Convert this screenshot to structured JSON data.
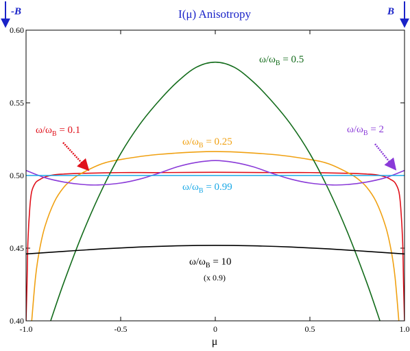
{
  "chart_data": {
    "type": "line",
    "title": "I(μ) Anisotropy",
    "xlabel": "μ",
    "ylabel": "",
    "xlim": [
      -1.0,
      1.0
    ],
    "ylim": [
      0.4,
      0.6
    ],
    "xticks": [
      -1.0,
      -0.5,
      0.0,
      0.5,
      1.0
    ],
    "xtick_labels": [
      "-1.0",
      "-0.5",
      "0",
      "0.5",
      "1.0"
    ],
    "yticks": [
      0.4,
      0.45,
      0.5,
      0.55,
      0.6
    ],
    "ytick_labels": [
      "0.40",
      "0.45",
      "0.50",
      "0.55",
      "0.60"
    ],
    "grid": false,
    "field_markers": [
      {
        "label": "-B",
        "side": "left",
        "color": "#1a23c8"
      },
      {
        "label": "B",
        "side": "right",
        "color": "#1a23c8"
      }
    ],
    "series": [
      {
        "name": "ω/ωB = 0.1",
        "label_main": "ω/ω",
        "label_sub": "B",
        "label_value": " = 0.1",
        "color": "#e0101a",
        "x": [
          -1.0,
          -0.995,
          -0.99,
          -0.98,
          -0.97,
          -0.95,
          -0.93,
          -0.9,
          -0.85,
          -0.8,
          -0.7,
          -0.5,
          -0.3,
          0.0,
          0.3,
          0.5,
          0.7,
          0.8,
          0.85,
          0.9,
          0.93,
          0.95,
          0.97,
          0.98,
          0.99,
          0.995,
          1.0
        ],
        "y": [
          0.4,
          0.425,
          0.455,
          0.478,
          0.489,
          0.495,
          0.497,
          0.499,
          0.5005,
          0.501,
          0.5015,
          0.502,
          0.502,
          0.5022,
          0.502,
          0.502,
          0.5015,
          0.501,
          0.5005,
          0.499,
          0.497,
          0.495,
          0.489,
          0.478,
          0.455,
          0.425,
          0.4
        ]
      },
      {
        "name": "ω/ωB = 0.25",
        "label_main": "ω/ω",
        "label_sub": "B",
        "label_value": " = 0.25",
        "color": "#f0a010",
        "x": [
          -0.97,
          -0.95,
          -0.93,
          -0.9,
          -0.85,
          -0.8,
          -0.75,
          -0.7,
          -0.6,
          -0.5,
          -0.3,
          0.0,
          0.3,
          0.5,
          0.6,
          0.7,
          0.75,
          0.8,
          0.85,
          0.9,
          0.93,
          0.95,
          0.97
        ],
        "y": [
          0.4,
          0.43,
          0.448,
          0.465,
          0.482,
          0.492,
          0.498,
          0.502,
          0.508,
          0.511,
          0.5145,
          0.5165,
          0.5145,
          0.511,
          0.508,
          0.502,
          0.498,
          0.492,
          0.482,
          0.465,
          0.448,
          0.43,
          0.4
        ]
      },
      {
        "name": "ω/ωB = 0.5",
        "label_main": "ω/ω",
        "label_sub": "B",
        "label_value": " = 0.5",
        "color": "#126b1a",
        "x": [
          -0.87,
          -0.8,
          -0.7,
          -0.6,
          -0.5,
          -0.4,
          -0.3,
          -0.2,
          -0.1,
          0.0,
          0.1,
          0.2,
          0.3,
          0.4,
          0.5,
          0.6,
          0.7,
          0.8,
          0.87
        ],
        "y": [
          0.4,
          0.4265,
          0.4605,
          0.49,
          0.515,
          0.535,
          0.551,
          0.5645,
          0.5745,
          0.578,
          0.5745,
          0.5645,
          0.551,
          0.535,
          0.515,
          0.49,
          0.4605,
          0.4265,
          0.4
        ]
      },
      {
        "name": "ω/ωB = 2",
        "label_main": "ω/ω",
        "label_sub": "B",
        "label_value": " = 2",
        "color": "#8a3ad8",
        "x": [
          -1.0,
          -0.9,
          -0.8,
          -0.7,
          -0.62,
          -0.5,
          -0.4,
          -0.3,
          -0.2,
          -0.1,
          0.0,
          0.1,
          0.2,
          0.3,
          0.4,
          0.5,
          0.62,
          0.7,
          0.8,
          0.9,
          1.0
        ],
        "y": [
          0.5035,
          0.4985,
          0.4955,
          0.4938,
          0.4935,
          0.4948,
          0.4975,
          0.5015,
          0.506,
          0.509,
          0.5103,
          0.509,
          0.506,
          0.5015,
          0.4975,
          0.4948,
          0.4935,
          0.4938,
          0.4955,
          0.4985,
          0.5035
        ]
      },
      {
        "name": "ω/ωB = 0.99",
        "label_main": "ω/ω",
        "label_sub": "B",
        "label_value": " = 0.99",
        "color": "#1aa8e6",
        "x": [
          -1.0,
          1.0
        ],
        "y": [
          0.5,
          0.5
        ]
      },
      {
        "name": "ω/ωB = 10",
        "label_main": "ω/ω",
        "label_sub": "B",
        "label_value": " = 10",
        "label_note": "(x 0.9)",
        "color": "#000000",
        "x": [
          -1.0,
          -0.8,
          -0.6,
          -0.4,
          -0.2,
          0.0,
          0.2,
          0.4,
          0.6,
          0.8,
          1.0
        ],
        "y": [
          0.446,
          0.4478,
          0.4495,
          0.4508,
          0.4516,
          0.4519,
          0.4516,
          0.4508,
          0.4495,
          0.4478,
          0.446
        ]
      }
    ]
  }
}
